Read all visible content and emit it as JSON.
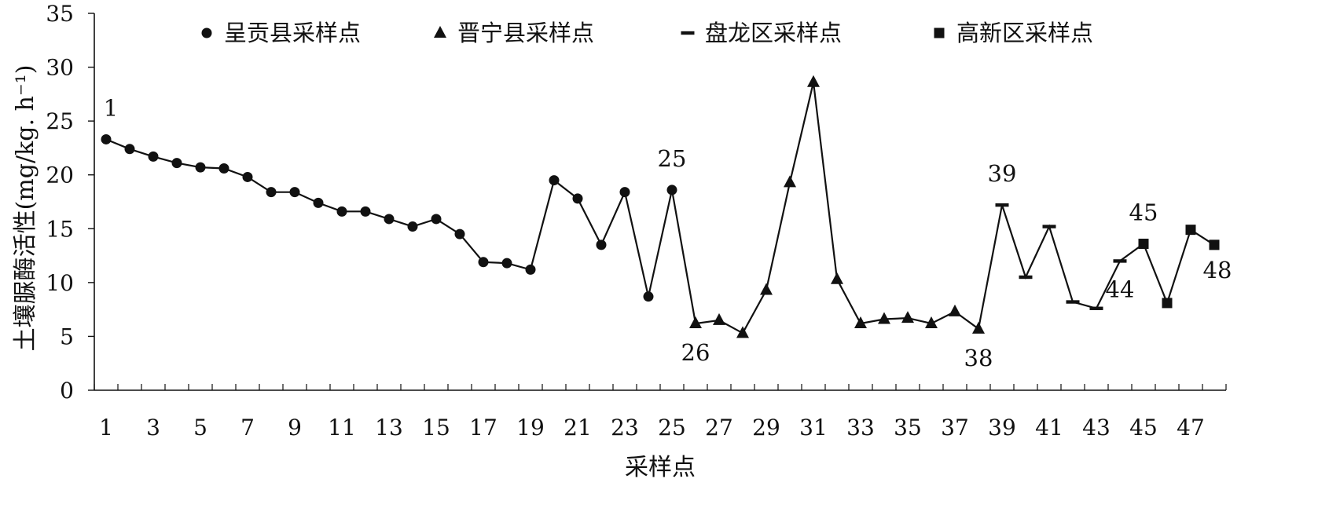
{
  "chart_data": {
    "type": "line",
    "title": "",
    "xlabel": "采样点",
    "ylabel": "土壤脲酶活性(mg/kg. h⁻¹)",
    "ylim": [
      0,
      35
    ],
    "yticks": [
      0,
      5,
      10,
      15,
      20,
      25,
      30,
      35
    ],
    "xticks": [
      1,
      3,
      5,
      7,
      9,
      11,
      13,
      15,
      17,
      19,
      21,
      23,
      25,
      27,
      29,
      31,
      33,
      35,
      37,
      39,
      41,
      43,
      45,
      47
    ],
    "grid": false,
    "legend_position": "top",
    "x": [
      1,
      2,
      3,
      4,
      5,
      6,
      7,
      8,
      9,
      10,
      11,
      12,
      13,
      14,
      15,
      16,
      17,
      18,
      19,
      20,
      21,
      22,
      23,
      24,
      25,
      26,
      27,
      28,
      29,
      30,
      31,
      32,
      33,
      34,
      35,
      36,
      37,
      38,
      39,
      40,
      41,
      42,
      43,
      44,
      45,
      46,
      47,
      48
    ],
    "values": [
      23.3,
      22.4,
      21.7,
      21.1,
      20.7,
      20.6,
      19.8,
      18.4,
      18.4,
      17.4,
      16.6,
      16.6,
      15.9,
      15.2,
      15.9,
      14.5,
      11.9,
      11.8,
      11.2,
      19.5,
      17.8,
      13.5,
      18.4,
      8.7,
      18.6,
      6.2,
      6.5,
      5.3,
      9.3,
      19.3,
      28.6,
      10.3,
      6.2,
      6.6,
      6.7,
      6.2,
      7.3,
      5.7,
      17.2,
      10.5,
      15.2,
      8.2,
      7.6,
      12.0,
      13.6,
      8.1,
      14.9,
      13.5
    ],
    "series": [
      {
        "name": "呈贡县采样点",
        "marker": "circle",
        "range": [
          1,
          25
        ]
      },
      {
        "name": "晋宁县采样点",
        "marker": "triangle",
        "range": [
          26,
          38
        ]
      },
      {
        "name": "盘龙区采样点",
        "marker": "dash",
        "range": [
          39,
          44
        ]
      },
      {
        "name": "高新区采样点",
        "marker": "square",
        "range": [
          45,
          48
        ]
      }
    ],
    "annotations": [
      {
        "label": "1",
        "x": 1
      },
      {
        "label": "25",
        "x": 25
      },
      {
        "label": "26",
        "x": 26
      },
      {
        "label": "38",
        "x": 38
      },
      {
        "label": "39",
        "x": 39
      },
      {
        "label": "44",
        "x": 44
      },
      {
        "label": "45",
        "x": 45
      },
      {
        "label": "48",
        "x": 48
      }
    ],
    "colors": {
      "line": "#111111",
      "marker": "#111111"
    }
  }
}
